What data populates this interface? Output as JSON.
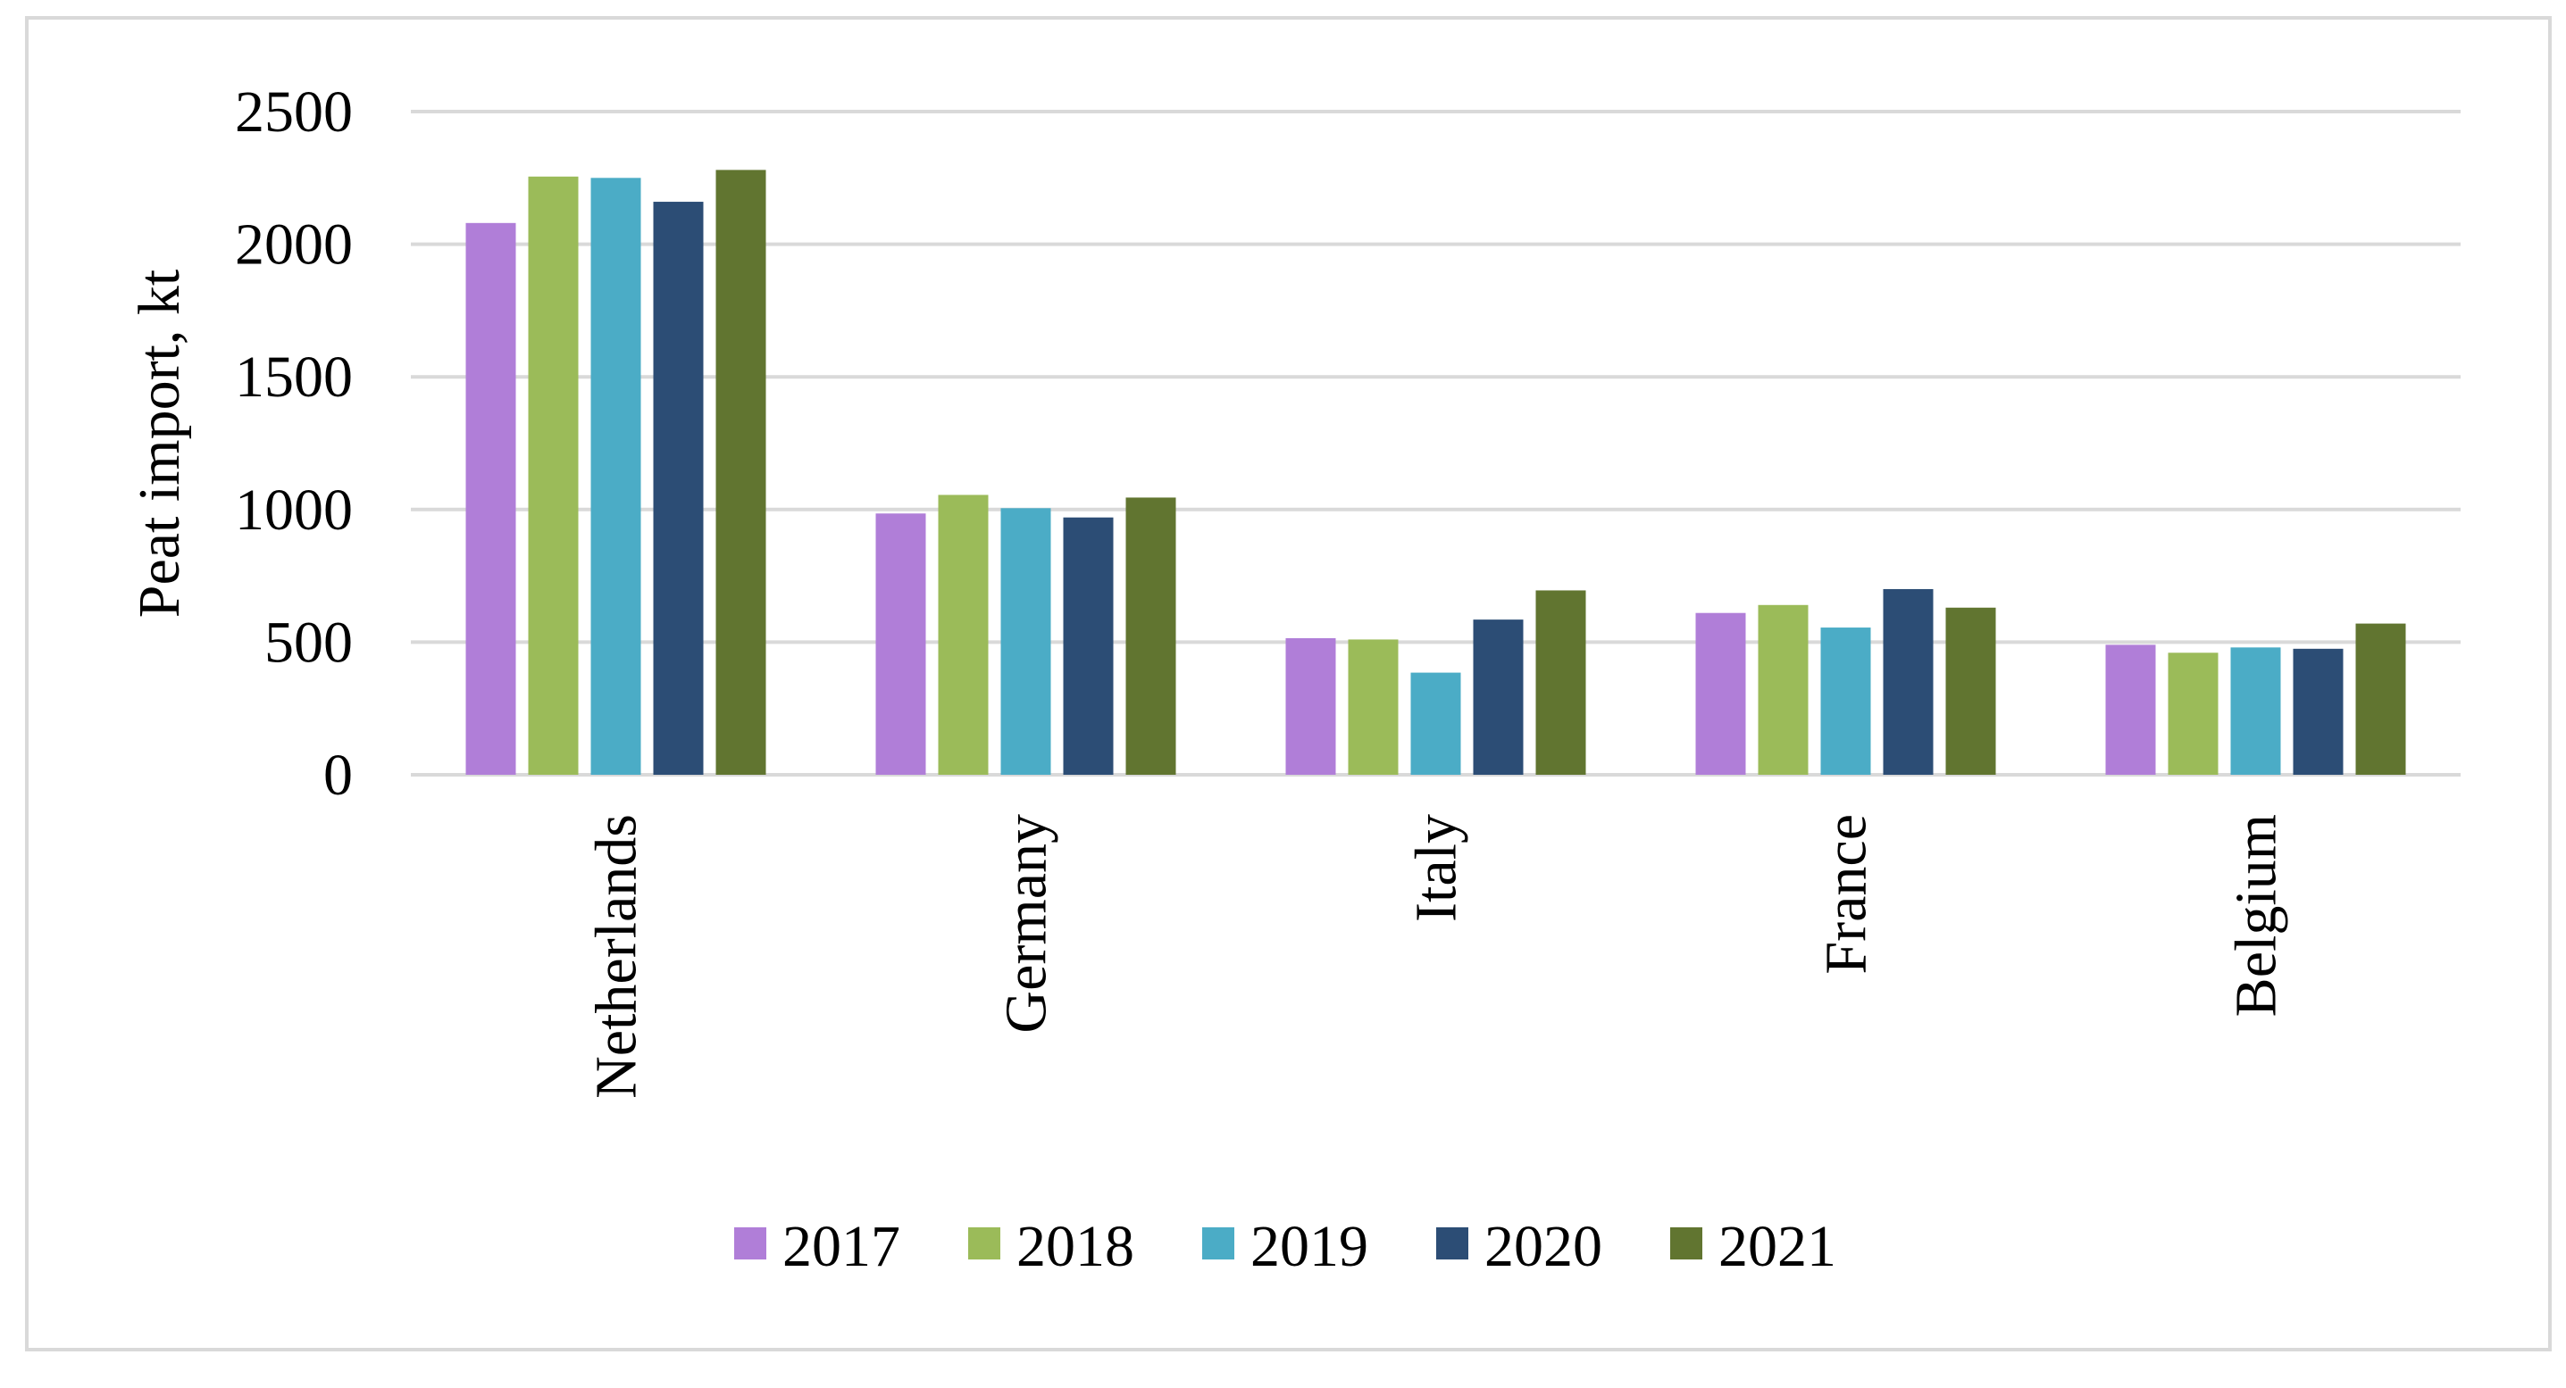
{
  "chart_data": {
    "type": "bar",
    "title": "",
    "xlabel": "",
    "ylabel": "Peat import, kt",
    "ylim": [
      0,
      2500
    ],
    "yticks": [
      0,
      500,
      1000,
      1500,
      2000,
      2500
    ],
    "grid": true,
    "legend_position": "bottom",
    "categories": [
      "Netherlands",
      "Germany",
      "Italy",
      "France",
      "Belgium"
    ],
    "series": [
      {
        "name": "2017",
        "color": "#b07ed8",
        "values": [
          2080,
          985,
          515,
          610,
          490
        ]
      },
      {
        "name": "2018",
        "color": "#9bbb59",
        "values": [
          2255,
          1055,
          510,
          640,
          460
        ]
      },
      {
        "name": "2019",
        "color": "#4bacc6",
        "values": [
          2250,
          1005,
          385,
          555,
          480
        ]
      },
      {
        "name": "2020",
        "color": "#2c4d75",
        "values": [
          2160,
          970,
          585,
          700,
          475
        ]
      },
      {
        "name": "2021",
        "color": "#617530",
        "values": [
          2280,
          1045,
          695,
          630,
          570
        ]
      }
    ],
    "gridline_color": "#d9d9d9",
    "frame_color": "#d9d9d9"
  }
}
